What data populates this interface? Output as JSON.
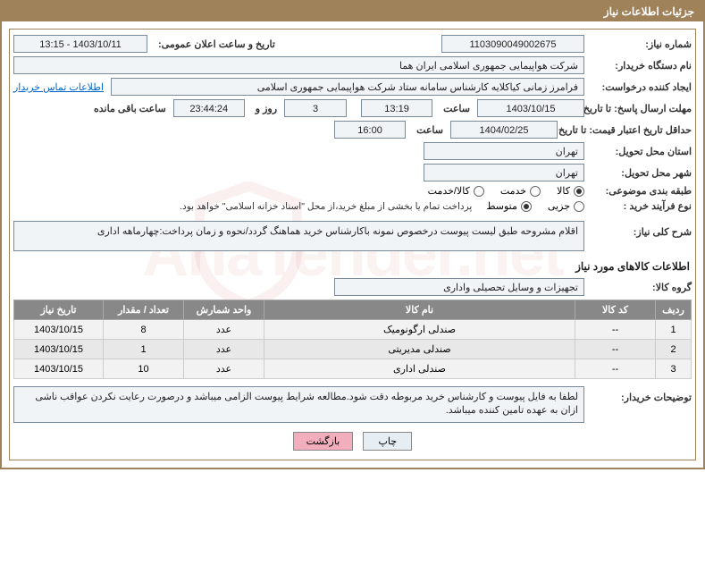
{
  "title_bar": "جزئیات اطلاعات نیاز",
  "labels": {
    "need_no": "شماره نیاز:",
    "announce_dt": "تاریخ و ساعت اعلان عمومی:",
    "buyer_org": "نام دستگاه خریدار:",
    "requester": "ایجاد کننده درخواست:",
    "buyer_contact_link": "اطلاعات تماس خریدار",
    "resp_deadline": "مهلت ارسال پاسخ: تا تاریخ:",
    "hour1": "ساعت",
    "days_and": "روز و",
    "remaining": "ساعت باقی مانده",
    "min_validity": "حداقل تاریخ اعتبار قیمت: تا تاریخ:",
    "hour2": "ساعت",
    "delivery_province": "استان محل تحویل:",
    "delivery_city": "شهر محل تحویل:",
    "subject_class": "طبقه بندی موضوعی:",
    "purchase_type": "نوع فرآیند خرید :",
    "payment_note": "پرداخت تمام یا بخشی از مبلغ خرید،از محل \"اسناد خزانه اسلامی\" خواهد بود.",
    "general_desc": "شرح کلی نیاز:",
    "items_info": "اطلاعات کالاهای مورد نیاز",
    "goods_group": "گروه کالا:",
    "buyer_notes": "توضیحات خریدار:",
    "btn_print": "چاپ",
    "btn_back": "بازگشت"
  },
  "values": {
    "need_no": "1103090049002675",
    "announce_dt": "1403/10/11 - 13:15",
    "buyer_org": "شرکت هواپیمایی جمهوری اسلامی ایران هما",
    "requester": "فرامرز زمانی کیاکلایه کارشناس سامانه ستاد شرکت هواپیمایی جمهوری اسلامی",
    "resp_date": "1403/10/15",
    "resp_time": "13:19",
    "days_left": "3",
    "time_left": "23:44:24",
    "valid_date": "1404/02/25",
    "valid_time": "16:00",
    "province": "تهران",
    "city": "تهران",
    "general_desc": "اقلام مشروحه طبق لیست پیوست درخصوص نمونه باکارشناس خرید هماهنگ گردد/نحوه و زمان پرداخت:چهارماهه اداری",
    "goods_group": "تجهیزات و وسایل تحصیلی واداری",
    "buyer_notes": "لطفا به فایل پیوست و کارشناس خرید مربوطه دقت شود.مطالعه شرایط پیوست الزامی میباشد و درصورت رعایت نکردن عواقب ناشی ازان به عهده تامین کننده میباشد."
  },
  "radios": {
    "subject": [
      {
        "label": "کالا",
        "checked": true
      },
      {
        "label": "خدمت",
        "checked": false
      },
      {
        "label": "کالا/خدمت",
        "checked": false
      }
    ],
    "purchase": [
      {
        "label": "جزیی",
        "checked": false
      },
      {
        "label": "متوسط",
        "checked": true
      }
    ]
  },
  "table": {
    "headers": [
      "ردیف",
      "کد کالا",
      "نام کالا",
      "واحد شمارش",
      "تعداد / مقدار",
      "تاریخ نیاز"
    ],
    "col_widths": [
      "40px",
      "90px",
      "auto",
      "90px",
      "90px",
      "100px"
    ],
    "rows": [
      [
        "1",
        "--",
        "صندلی ارگونومیک",
        "عدد",
        "8",
        "1403/10/15"
      ],
      [
        "2",
        "--",
        "صندلی مدیریتی",
        "عدد",
        "1",
        "1403/10/15"
      ],
      [
        "3",
        "--",
        "صندلی اداری",
        "عدد",
        "10",
        "1403/10/15"
      ]
    ]
  },
  "watermark": "AriaTender.net"
}
